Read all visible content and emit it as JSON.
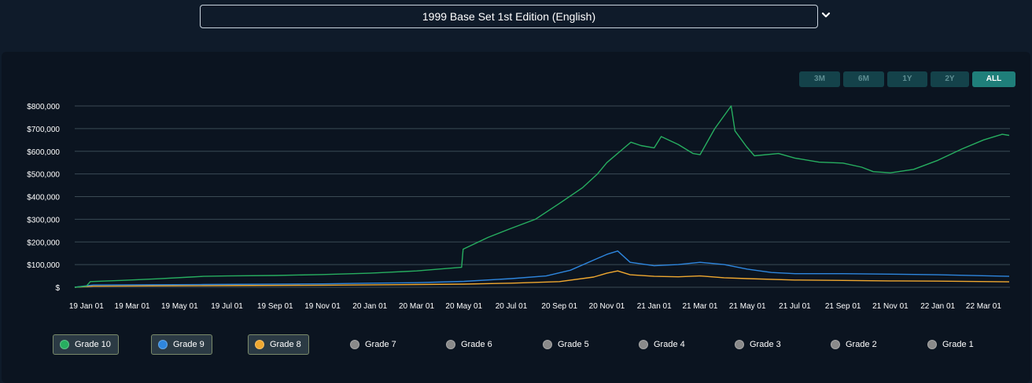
{
  "set_selector": {
    "value": "1999 Base Set 1st Edition (English)"
  },
  "icons": {
    "dropdown": "chevron-down-icon"
  },
  "range_buttons": [
    {
      "label": "3M",
      "active": false
    },
    {
      "label": "6M",
      "active": false
    },
    {
      "label": "1Y",
      "active": false
    },
    {
      "label": "2Y",
      "active": false
    },
    {
      "label": "ALL",
      "active": true
    }
  ],
  "colors": {
    "grade10": "#27ae60",
    "grade9": "#2e86de",
    "grade8": "#f0a830",
    "inactive": "#8a8a8a",
    "grid": "#3b4a54"
  },
  "chart_data": {
    "type": "line",
    "xlabel": "",
    "ylabel": "",
    "ylim": [
      0,
      800000
    ],
    "y_ticks": [
      "$",
      "$100,000",
      "$200,000",
      "$300,000",
      "$400,000",
      "$500,000",
      "$600,000",
      "$700,000",
      "$800,000"
    ],
    "x_tick_labels": [
      "19 Jan 01",
      "19 Mar 01",
      "19 May 01",
      "19 Jul 01",
      "19 Sep 01",
      "19 Nov 01",
      "20 Jan 01",
      "20 Mar 01",
      "20 May 01",
      "20 Jul 01",
      "20 Sep 01",
      "20 Nov 01",
      "21 Jan 01",
      "21 Mar 01",
      "21 May 01",
      "21 Jul 01",
      "21 Sep 01",
      "21 Nov 01",
      "22 Jan 01",
      "22 Mar 01"
    ],
    "x_range": [
      "2018-12-17",
      "2022-04-04"
    ],
    "grid": true,
    "legend_position": "bottom",
    "series": [
      {
        "name": "Grade 10",
        "color": "#27ae60",
        "x": [
          "2018-12-17",
          "2019-01-01",
          "2019-01-06",
          "2019-02-15",
          "2019-04-01",
          "2019-05-15",
          "2019-06-01",
          "2019-07-01",
          "2019-09-01",
          "2019-11-01",
          "2020-01-01",
          "2020-03-01",
          "2020-04-28",
          "2020-04-30",
          "2020-06-01",
          "2020-07-01",
          "2020-08-01",
          "2020-09-01",
          "2020-10-01",
          "2020-10-20",
          "2020-11-01",
          "2020-11-25",
          "2020-12-02",
          "2020-12-15",
          "2021-01-01",
          "2021-01-10",
          "2021-02-01",
          "2021-02-20",
          "2021-03-01",
          "2021-03-20",
          "2021-04-10",
          "2021-04-15",
          "2021-04-30",
          "2021-05-10",
          "2021-06-10",
          "2021-07-01",
          "2021-08-01",
          "2021-09-01",
          "2021-09-25",
          "2021-10-10",
          "2021-11-01",
          "2021-12-01",
          "2022-01-01",
          "2022-02-01",
          "2022-03-01",
          "2022-03-25",
          "2022-04-03"
        ],
        "values": [
          0,
          5000,
          25000,
          30000,
          37000,
          45000,
          48000,
          50000,
          52000,
          56000,
          62000,
          72000,
          88000,
          168000,
          220000,
          260000,
          300000,
          370000,
          440000,
          500000,
          550000,
          620000,
          640000,
          625000,
          615000,
          665000,
          630000,
          590000,
          585000,
          700000,
          800000,
          690000,
          620000,
          580000,
          590000,
          570000,
          552000,
          548000,
          530000,
          510000,
          505000,
          520000,
          560000,
          610000,
          650000,
          675000,
          670000
        ]
      },
      {
        "name": "Grade 9",
        "color": "#2e86de",
        "x": [
          "2018-12-17",
          "2019-01-10",
          "2019-06-01",
          "2019-11-01",
          "2020-01-01",
          "2020-03-01",
          "2020-05-01",
          "2020-07-01",
          "2020-08-15",
          "2020-09-15",
          "2020-10-15",
          "2020-11-01",
          "2020-11-15",
          "2020-12-01",
          "2021-01-01",
          "2021-02-01",
          "2021-03-01",
          "2021-04-01",
          "2021-05-01",
          "2021-06-01",
          "2021-07-01",
          "2021-09-01",
          "2021-11-01",
          "2022-01-01",
          "2022-04-03"
        ],
        "values": [
          0,
          10000,
          12000,
          15000,
          18000,
          20000,
          26000,
          38000,
          50000,
          75000,
          120000,
          145000,
          160000,
          110000,
          95000,
          100000,
          110000,
          100000,
          80000,
          65000,
          60000,
          60000,
          58000,
          55000,
          48000
        ]
      },
      {
        "name": "Grade 8",
        "color": "#f0a830",
        "x": [
          "2018-12-17",
          "2019-01-10",
          "2019-06-01",
          "2019-11-01",
          "2020-03-01",
          "2020-05-01",
          "2020-07-01",
          "2020-09-01",
          "2020-10-15",
          "2020-11-01",
          "2020-11-15",
          "2020-12-01",
          "2021-01-01",
          "2021-02-01",
          "2021-03-01",
          "2021-04-01",
          "2021-05-01",
          "2021-07-01",
          "2021-09-01",
          "2021-11-01",
          "2022-01-01",
          "2022-04-03"
        ],
        "values": [
          0,
          5000,
          7000,
          9000,
          12000,
          14000,
          18000,
          25000,
          45000,
          62000,
          72000,
          55000,
          48000,
          46000,
          50000,
          42000,
          38000,
          32000,
          30000,
          28000,
          27000,
          24000
        ]
      }
    ]
  },
  "legend": [
    {
      "label": "Grade 10",
      "color": "#27ae60",
      "active": true
    },
    {
      "label": "Grade 9",
      "color": "#2e86de",
      "active": true
    },
    {
      "label": "Grade 8",
      "color": "#f0a830",
      "active": true
    },
    {
      "label": "Grade 7",
      "color": "#8a8a8a",
      "active": false
    },
    {
      "label": "Grade 6",
      "color": "#8a8a8a",
      "active": false
    },
    {
      "label": "Grade 5",
      "color": "#8a8a8a",
      "active": false
    },
    {
      "label": "Grade 4",
      "color": "#8a8a8a",
      "active": false
    },
    {
      "label": "Grade 3",
      "color": "#8a8a8a",
      "active": false
    },
    {
      "label": "Grade 2",
      "color": "#8a8a8a",
      "active": false
    },
    {
      "label": "Grade 1",
      "color": "#8a8a8a",
      "active": false
    }
  ]
}
